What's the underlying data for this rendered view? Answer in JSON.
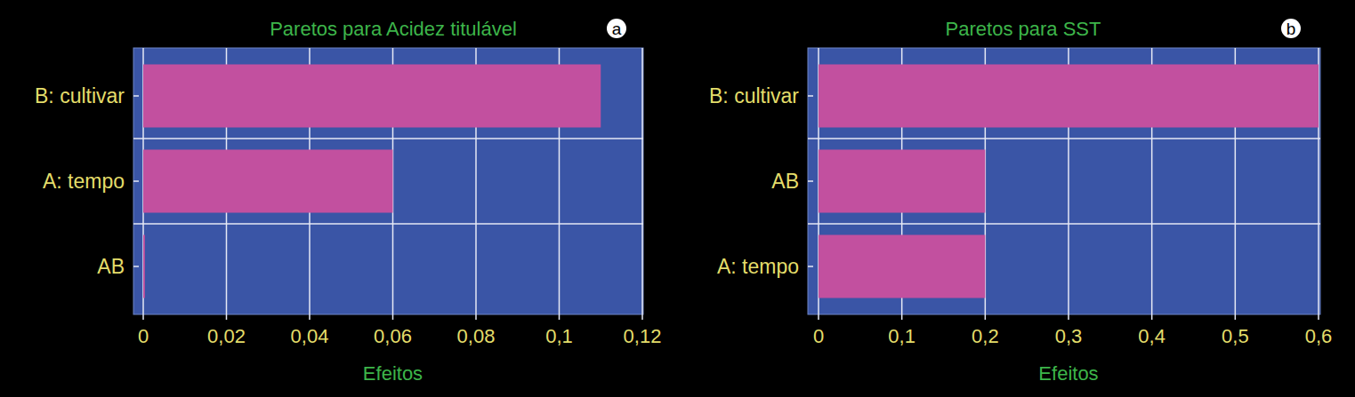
{
  "chart_data": [
    {
      "type": "bar",
      "orientation": "horizontal",
      "title": "Paretos para Acidez titulável",
      "annotation": "a",
      "categories": [
        "B: cultivar",
        "A: tempo",
        "AB"
      ],
      "values": [
        0.11,
        0.06,
        0.0004
      ],
      "color": "#c2509f",
      "xlabel": "Efeitos",
      "xlim": [
        0,
        0.12
      ],
      "xticks": [
        0,
        {
          "value": 0.02,
          "label": "0,02"
        },
        {
          "value": 0.04,
          "label": "0,04"
        },
        {
          "value": 0.06,
          "label": "0,06"
        },
        {
          "value": 0.08,
          "label": "0,08"
        },
        {
          "value": 0.1,
          "label": "0,1"
        },
        {
          "value": 0.12,
          "label": "0,12"
        }
      ],
      "grid": true
    },
    {
      "type": "bar",
      "orientation": "horizontal",
      "title": "Paretos para SST",
      "annotation": "b",
      "categories": [
        "B: cultivar",
        "AB",
        "A: tempo"
      ],
      "values": [
        0.6,
        0.2,
        0.2
      ],
      "color": "#c2509f",
      "xlabel": "Efeitos",
      "xlim": [
        0,
        0.6
      ],
      "xticks": [
        0,
        {
          "value": 0.1,
          "label": "0,1"
        },
        {
          "value": 0.2,
          "label": "0,2"
        },
        {
          "value": 0.3,
          "label": "0,3"
        },
        {
          "value": 0.4,
          "label": "0,4"
        },
        {
          "value": 0.5,
          "label": "0,5"
        },
        {
          "value": 0.6,
          "label": "0,6"
        }
      ],
      "grid": true
    }
  ]
}
